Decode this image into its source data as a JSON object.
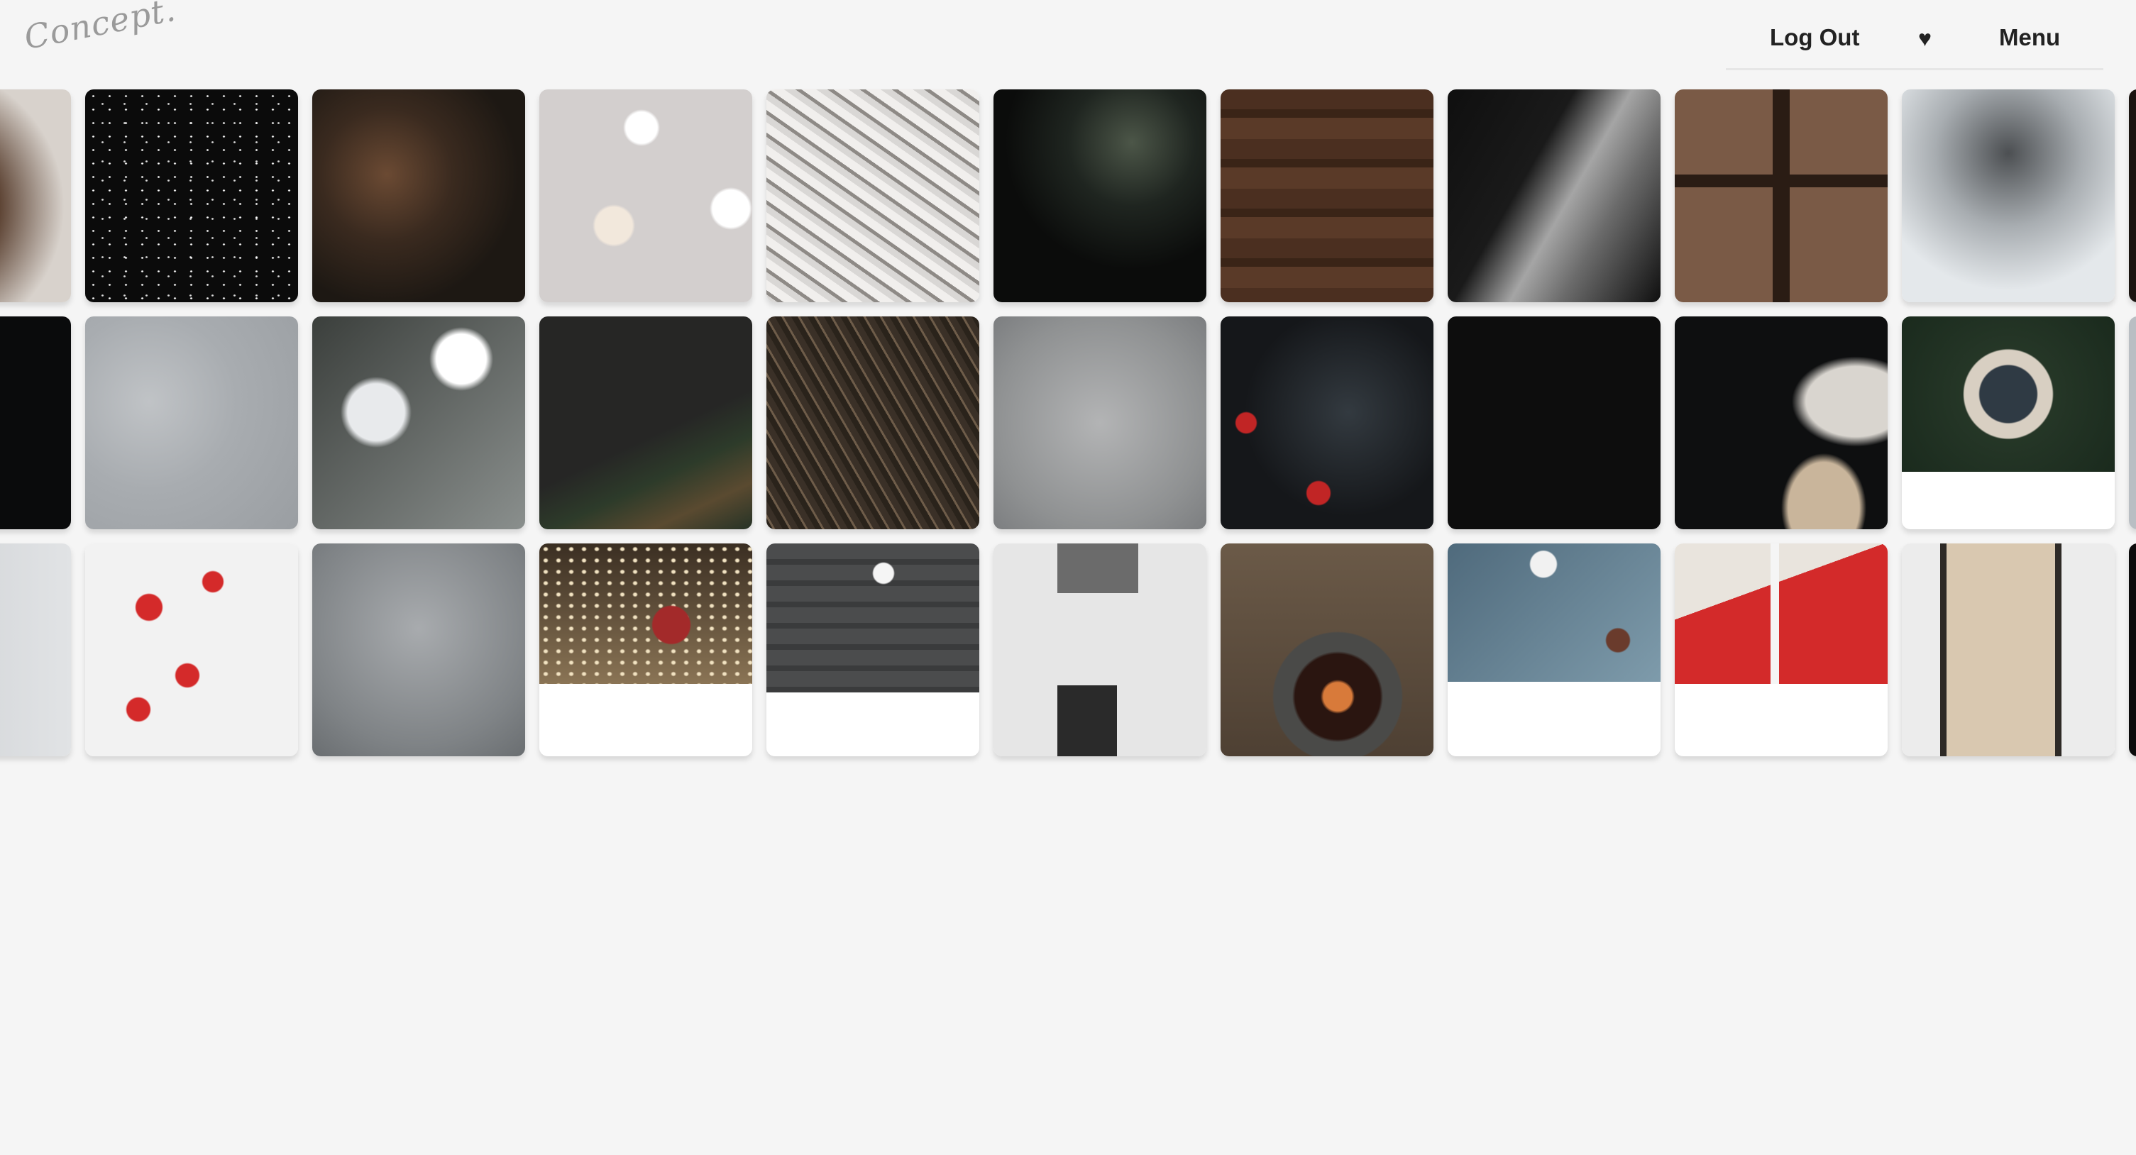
{
  "header": {
    "logo_text": "Concept.",
    "nav": {
      "logout_label": "Log Out",
      "heart_label": "♥",
      "menu_label": "Menu"
    }
  },
  "colors": {
    "background": "#f5f5f5",
    "nav_text": "#222222",
    "logo_text": "#9a9a9a"
  },
  "gallery": {
    "tiles": [
      {
        "row": 0,
        "subject": "pine-cone-photo",
        "fill": 1.0,
        "bg": "radial-gradient(circle at 30% 55%, #8a6a4e 0%, #5a4030 40%, #d8d2cc 75%)"
      },
      {
        "row": 0,
        "subject": "snow-night-photo",
        "fill": 1.0,
        "bg": "radial-gradient(#ffffff 1px, transparent 2px) 0 0/23px 19px, radial-gradient(#dddddd 1px, transparent 2px) 9px 7px/31px 27px, #0b0b0b"
      },
      {
        "row": 0,
        "subject": "pine-cones-dark-photo",
        "fill": 1.0,
        "bg": "radial-gradient(circle at 35% 40%, #6b4a33 0%, #3a2a1f 35%, #1d1813 70%)"
      },
      {
        "row": 0,
        "subject": "bokeh-lights-photo",
        "fill": 1.0,
        "bg": "radial-gradient(circle at 48% 18%, #ffffff 0 22px, transparent 26px), radial-gradient(circle at 90% 56%, #ffffff 0 26px, transparent 30px), radial-gradient(circle at 35% 64%, #f2e8dc 0 26px, transparent 30px), #d3cfce"
      },
      {
        "row": 0,
        "subject": "linen-fabric-photo",
        "fill": 1.0,
        "bg": "repeating-linear-gradient(35deg, #d9d7d5 0 9px, #8e8a86 9px 14px, #f1efed 14px 26px)"
      },
      {
        "row": 0,
        "subject": "fir-branch-dark-photo",
        "fill": 1.0,
        "bg": "radial-gradient(circle at 65% 25%, #4c5648 0%, #1f2520 30%, #0b0c0b 60%)"
      },
      {
        "row": 0,
        "subject": "wood-planks-photo",
        "fill": 1.0,
        "bg": "repeating-linear-gradient(180deg, #4b2f20 0 28px, #3a2417 28px 40px, #5a3a28 40px 70px)"
      },
      {
        "row": 0,
        "subject": "grey-knit-dark-photo",
        "fill": 1.0,
        "bg": "linear-gradient(120deg, #0f0f0f 0%, #1a1a1a 38%, #a5a5a5 55%, #6b6b6b 70%, #0f0f0f 100%)"
      },
      {
        "row": 0,
        "subject": "wood-window-photo",
        "fill": 1.0,
        "bg": "linear-gradient(90deg, transparent 46%, #2a1c14 46% 54%, transparent 54%), linear-gradient(180deg, transparent 40%, #2a1c14 40% 46%, transparent 46%), #7a5a46"
      },
      {
        "row": 0,
        "subject": "snowy-fir-photo",
        "fill": 1.0,
        "bg": "radial-gradient(circle at 50% 30%, #4c4f52 0%, #a8adb1 40%, #e4e8eb 75%)"
      },
      {
        "row": 0,
        "subject": "dark-edge-photo",
        "fill": 1.0,
        "bg": "linear-gradient(90deg, #1a1410 0%, #3a2a1f 100%)"
      },
      {
        "row": 1,
        "subject": "black-photo",
        "fill": 1.0,
        "bg": "#0a0b0c"
      },
      {
        "row": 1,
        "subject": "grey-concrete-photo",
        "fill": 1.0,
        "bg": "radial-gradient(circle at 30% 40%, #c0c3c6 0%, #a8acb0 45%, #9a9ea2 100%)"
      },
      {
        "row": 1,
        "subject": "bokeh-branches-photo",
        "fill": 1.0,
        "bg": "radial-gradient(circle at 70% 20%, #ffffff 0 35px, transparent 45px), radial-gradient(circle at 30% 45%, #e8eaec 0 40px, transparent 50px), linear-gradient(135deg, #3b3f3c, #8a8f8d)"
      },
      {
        "row": 1,
        "subject": "fir-branch-black-photo",
        "fill": 1.0,
        "bg": "linear-gradient(155deg, #262625 0%, #262625 55%, #2d3b2a 70%, #5a4a30 85%, #263326 100%)"
      },
      {
        "row": 1,
        "subject": "pine-needles-photo",
        "fill": 1.0,
        "bg": "repeating-linear-gradient(60deg, #2a231b 0 8px, #6e5c49 8px 11px, #3a3027 11px 20px)"
      },
      {
        "row": 1,
        "subject": "grey-stone-photo",
        "fill": 1.0,
        "bg": "radial-gradient(circle at 50% 50%, #b3b4b5 0%, #8f9192 70%, #7c7e80 100%)"
      },
      {
        "row": 1,
        "subject": "red-berries-dark-photo",
        "fill": 1.0,
        "bg": "radial-gradient(circle at 12% 50%, #c12525 0 14px, transparent 16px), radial-gradient(circle at 46% 83%, #c12525 0 16px, transparent 18px), radial-gradient(circle at 60% 45%, #333a40 0%, #15171a 60%)"
      },
      {
        "row": 1,
        "subject": "black-texture-photo",
        "fill": 1.0,
        "bg": "#0d0d0d"
      },
      {
        "row": 1,
        "subject": "rolling-pin-photo",
        "fill": 1.0,
        "bg": "radial-gradient(ellipse at 70% 90%, #c9b59b 0 50px, transparent 60px), radial-gradient(ellipse at 85% 40%, #d9d5cf 0 70px, transparent 90px), #0e0f10"
      },
      {
        "row": 1,
        "subject": "wreath-sign-photo",
        "fill": 0.73,
        "bg": "radial-gradient(circle at 50% 50%, #2f3a44 0 40px, #d8cfc2 42px 62px, transparent 64px), radial-gradient(circle at 50% 50%, #2b3d2c 0%, #1a2a1d 100%)"
      },
      {
        "row": 1,
        "subject": "grey-edge-photo",
        "fill": 1.0,
        "bg": "#b9bec3"
      },
      {
        "row": 2,
        "subject": "white-edge-photo",
        "fill": 1.0,
        "bg": "linear-gradient(90deg, #c9ccd0, #e1e3e5)"
      },
      {
        "row": 2,
        "subject": "red-berry-branch-photo",
        "fill": 1.0,
        "bg": "radial-gradient(circle at 30% 30%, #d42a2a 0 18px, transparent 20px), radial-gradient(circle at 48% 62%, #d42a2a 0 16px, transparent 18px), radial-gradient(circle at 60% 18%, #d42a2a 0 14px, transparent 16px), radial-gradient(circle at 25% 78%, #d42a2a 0 16px, transparent 18px), #f2f2f2"
      },
      {
        "row": 2,
        "subject": "grey-slate-photo",
        "fill": 1.0,
        "bg": "radial-gradient(circle at 50% 40%, #a8abae 0%, #7f8386 70%, #6a6e71 100%)"
      },
      {
        "row": 2,
        "subject": "joy-gift-bokeh-photo",
        "fill": 0.66,
        "bg": "radial-gradient(circle at 62% 58%, #a32a2a 0 26px, transparent 28px), radial-gradient(#f2e3c2 2px, transparent 4px) 0 0/18px 16px, linear-gradient(180deg, #3a2e22, #8a7455)"
      },
      {
        "row": 2,
        "subject": "star-ornaments-wood-photo",
        "fill": 0.7,
        "bg": "radial-gradient(circle at 55% 20%, #f5f5f5 0 14px, transparent 16px), repeating-linear-gradient(180deg, #4b4c4d 0 22px, #3a3b3c 22px 30px)"
      },
      {
        "row": 2,
        "subject": "white-house-window-photo",
        "fill": 1.0,
        "bg": "linear-gradient(90deg, transparent 30%, #2a2a2a 30% 58%, transparent 58%) 0 200px/100% 100px no-repeat, linear-gradient(90deg, transparent 30%, #6b6b6b 30% 68%, transparent 68%) 0 0/100% 70px no-repeat, #e6e6e6"
      },
      {
        "row": 2,
        "subject": "mulled-wine-photo",
        "fill": 1.0,
        "bg": "radial-gradient(circle at 55% 72%, #d87a3a 0 20px, #2a1510 24px 60px, #4a4a48 64px 90px, transparent 92px), linear-gradient(180deg, #6b5a48, #4e4033)"
      },
      {
        "row": 2,
        "subject": "tea-table-photo",
        "fill": 0.65,
        "bg": "radial-gradient(circle at 45% 15%, #f1f1f1 0 18px, transparent 20px), radial-gradient(circle at 80% 70%, #6a3b2c 0 16px, transparent 18px), linear-gradient(135deg, #4f6a7c, #7e9bab)"
      },
      {
        "row": 2,
        "subject": "red-gifts-photo",
        "fill": 0.66,
        "bg": "linear-gradient(90deg, transparent 45%, #f5f5f5 45% 49%, transparent 49%), linear-gradient(160deg, #e9e4dd 0 35%, #d32a2a 35%)"
      },
      {
        "row": 2,
        "subject": "stollen-cake-photo",
        "fill": 1.0,
        "bg": "linear-gradient(90deg, transparent 18%, #2e2a26 18% 21%, #d9c8b0 21% 72%, #2e2a26 72% 75%, transparent 75%), #ececec"
      },
      {
        "row": 2,
        "subject": "black-edge-photo",
        "fill": 1.0,
        "bg": "#0c0c0c"
      }
    ]
  }
}
